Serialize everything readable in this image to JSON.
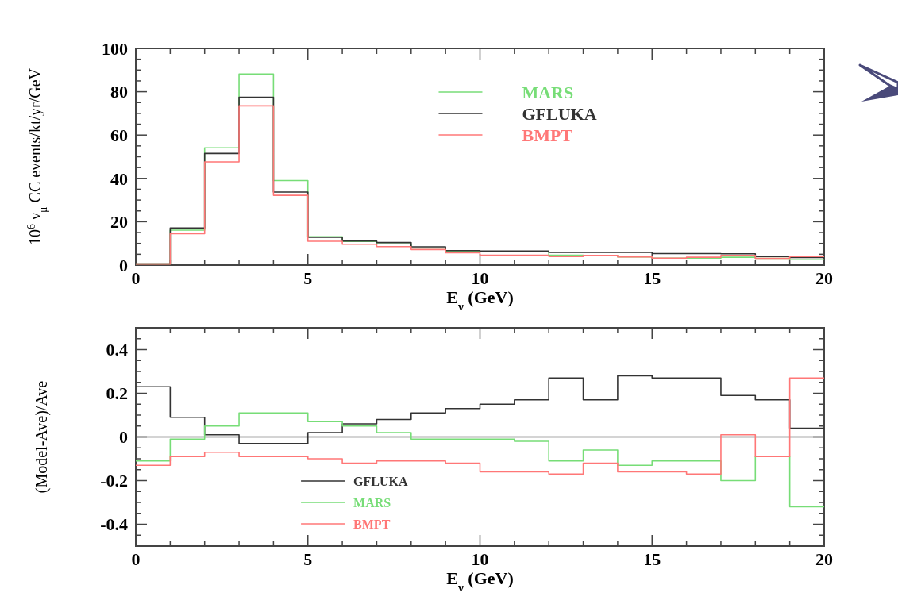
{
  "chart_data": [
    {
      "type": "histogram",
      "xlabel": "E$_{ν}$ (GeV)",
      "ylabel": "10$^{6}$ ν$_{μ}$ CC events/kt/yr/GeV",
      "bins": [
        0,
        1,
        2,
        3,
        4,
        5,
        6,
        7,
        8,
        9,
        10,
        11,
        12,
        13,
        14,
        15,
        16,
        17,
        18,
        19,
        20
      ],
      "xlim": [
        0,
        20
      ],
      "ylim": [
        0,
        100
      ],
      "xticks": [
        0,
        {
          "value": 1,
          "label": null
        },
        {
          "value": 2,
          "label": null
        },
        {
          "value": 3,
          "label": null
        },
        {
          "value": 4,
          "label": null
        },
        5,
        {
          "value": 6,
          "label": null
        },
        {
          "value": 7,
          "label": null
        },
        {
          "value": 8,
          "label": null
        },
        {
          "value": 9,
          "label": null
        },
        10,
        {
          "value": 11,
          "label": null
        },
        {
          "value": 12,
          "label": null
        },
        {
          "value": 13,
          "label": null
        },
        {
          "value": 14,
          "label": null
        },
        15,
        {
          "value": 16,
          "label": null
        },
        {
          "value": 17,
          "label": null
        },
        {
          "value": 18,
          "label": null
        },
        {
          "value": 19,
          "label": null
        },
        20
      ],
      "yticks": [
        0,
        {
          "value": 5,
          "label": null
        },
        {
          "value": 10,
          "label": null
        },
        {
          "value": 15,
          "label": null
        },
        20,
        {
          "value": 25,
          "label": null
        },
        {
          "value": 30,
          "label": null
        },
        {
          "value": 35,
          "label": null
        },
        40,
        {
          "value": 45,
          "label": null
        },
        {
          "value": 50,
          "label": null
        },
        {
          "value": 55,
          "label": null
        },
        60,
        {
          "value": 65,
          "label": null
        },
        {
          "value": 70,
          "label": null
        },
        {
          "value": 75,
          "label": null
        },
        80,
        {
          "value": 85,
          "label": null
        },
        {
          "value": 90,
          "label": null
        },
        {
          "value": 95,
          "label": null
        },
        100
      ],
      "legend": "top right",
      "series": [
        {
          "name": "MARS",
          "color": "#77dd77",
          "values": [
            0.5,
            16.1,
            54.1,
            88.2,
            39,
            13.1,
            10.9,
            9.8,
            7.9,
            6.3,
            6.2,
            6.2,
            4.6,
            4.5,
            3.8,
            3.2,
            3.2,
            3.6,
            3.1,
            2.5
          ]
        },
        {
          "name": "GFLUKA",
          "color": "#333333",
          "values": [
            0.5,
            17.1,
            51.5,
            77.5,
            33.7,
            12.8,
            11.1,
            10.4,
            8.4,
            6.7,
            6.5,
            6.5,
            5.9,
            5.9,
            5.9,
            5.3,
            5.3,
            5.2,
            4.0,
            3.5
          ]
        },
        {
          "name": "BMPT",
          "color": "#ff7777",
          "values": [
            0.5,
            14.5,
            47.6,
            73.5,
            32.2,
            11,
            9.6,
            8.5,
            7.2,
            5.7,
            4.6,
            4.6,
            4,
            4.5,
            3.8,
            3.2,
            3.6,
            4.5,
            3.1,
            4.0
          ]
        }
      ]
    },
    {
      "type": "histogram",
      "xlabel": "E$_{ν}$ (GeV)",
      "ylabel": "(Model-Ave)/Ave",
      "bins": [
        0,
        1,
        2,
        3,
        4,
        5,
        6,
        7,
        8,
        9,
        10,
        11,
        12,
        13,
        14,
        15,
        16,
        17,
        18,
        19,
        20
      ],
      "xlim": [
        0,
        20
      ],
      "ylim": [
        -0.5,
        0.5
      ],
      "xticks": [
        0,
        {
          "value": 1,
          "label": null
        },
        {
          "value": 2,
          "label": null
        },
        {
          "value": 3,
          "label": null
        },
        {
          "value": 4,
          "label": null
        },
        5,
        {
          "value": 6,
          "label": null
        },
        {
          "value": 7,
          "label": null
        },
        {
          "value": 8,
          "label": null
        },
        {
          "value": 9,
          "label": null
        },
        10,
        {
          "value": 11,
          "label": null
        },
        {
          "value": 12,
          "label": null
        },
        {
          "value": 13,
          "label": null
        },
        {
          "value": 14,
          "label": null
        },
        15,
        {
          "value": 16,
          "label": null
        },
        {
          "value": 17,
          "label": null
        },
        {
          "value": 18,
          "label": null
        },
        {
          "value": 19,
          "label": null
        },
        20
      ],
      "yticks": [
        {
          "value": -0.45,
          "label": null
        },
        -0.4,
        {
          "value": -0.35,
          "label": null
        },
        {
          "value": -0.3,
          "label": null
        },
        {
          "value": -0.25,
          "label": null
        },
        -0.2,
        {
          "value": -0.15,
          "label": null
        },
        {
          "value": -0.1,
          "label": null
        },
        {
          "value": -0.05,
          "label": null
        },
        0,
        {
          "value": 0.05,
          "label": null
        },
        {
          "value": 0.1,
          "label": null
        },
        {
          "value": 0.15,
          "label": null
        },
        0.2,
        {
          "value": 0.25,
          "label": null
        },
        {
          "value": 0.3,
          "label": null
        },
        {
          "value": 0.35,
          "label": null
        },
        0.4,
        {
          "value": 0.45,
          "label": null
        }
      ],
      "ref_lines": [
        {
          "axis": "y",
          "value": 0,
          "color": "#555555"
        }
      ],
      "legend": "bottom",
      "series": [
        {
          "name": "GFLUKA",
          "color": "#333333",
          "values": [
            0.23,
            0.09,
            0.01,
            -0.03,
            -0.03,
            0.02,
            0.06,
            0.08,
            0.11,
            0.13,
            0.15,
            0.17,
            0.27,
            0.17,
            0.28,
            0.27,
            0.27,
            0.19,
            0.17,
            0.04
          ]
        },
        {
          "name": "MARS",
          "color": "#77dd77",
          "values": [
            -0.11,
            -0.01,
            0.05,
            0.11,
            0.11,
            0.07,
            0.05,
            0.02,
            -0.01,
            -0.01,
            -0.01,
            -0.02,
            -0.11,
            -0.06,
            -0.13,
            -0.11,
            -0.11,
            -0.2,
            -0.09,
            -0.32
          ]
        },
        {
          "name": "BMPT",
          "color": "#ff7777",
          "values": [
            -0.13,
            -0.09,
            -0.07,
            -0.09,
            -0.09,
            -0.1,
            -0.12,
            -0.11,
            -0.11,
            -0.12,
            -0.16,
            -0.16,
            -0.17,
            -0.12,
            -0.16,
            -0.16,
            -0.17,
            0.01,
            -0.09,
            0.27
          ]
        }
      ]
    }
  ]
}
